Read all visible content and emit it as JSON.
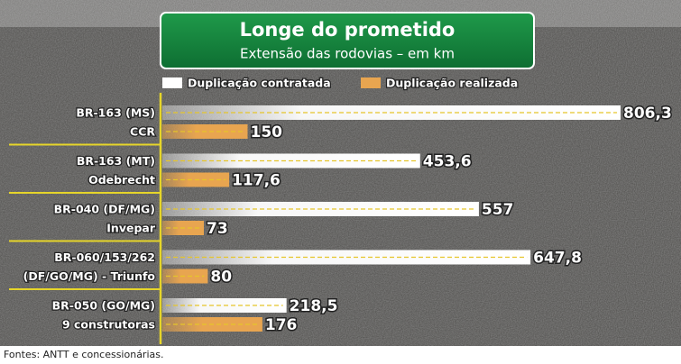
{
  "chart_data": {
    "type": "bar",
    "orientation": "horizontal",
    "title": "Longe do prometido",
    "subtitle": "Extensão das rodovias – em km",
    "categories": [
      [
        "BR-163 (MS)",
        "CCR"
      ],
      [
        "BR-163 (MT)",
        "Odebrecht"
      ],
      [
        "BR-040 (DF/MG)",
        "Invepar"
      ],
      [
        "BR-060/153/262",
        "(DF/GO/MG) - Triunfo"
      ],
      [
        "BR-050 (GO/MG)",
        "9 construtoras"
      ]
    ],
    "series": [
      {
        "name": "Duplicação contratada",
        "color": "#ffffff",
        "values": [
          806.3,
          453.6,
          557,
          647.8,
          218.5
        ],
        "value_labels": [
          "806,3",
          "453,6",
          "557",
          "647,8",
          "218,5"
        ]
      },
      {
        "name": "Duplicação realizada",
        "color": "#e8a550",
        "values": [
          150,
          117.6,
          73,
          80,
          176
        ],
        "value_labels": [
          "150",
          "117,6",
          "73",
          "80",
          "176"
        ]
      }
    ],
    "source": "Fontes: ANTT e concessionárias."
  }
}
